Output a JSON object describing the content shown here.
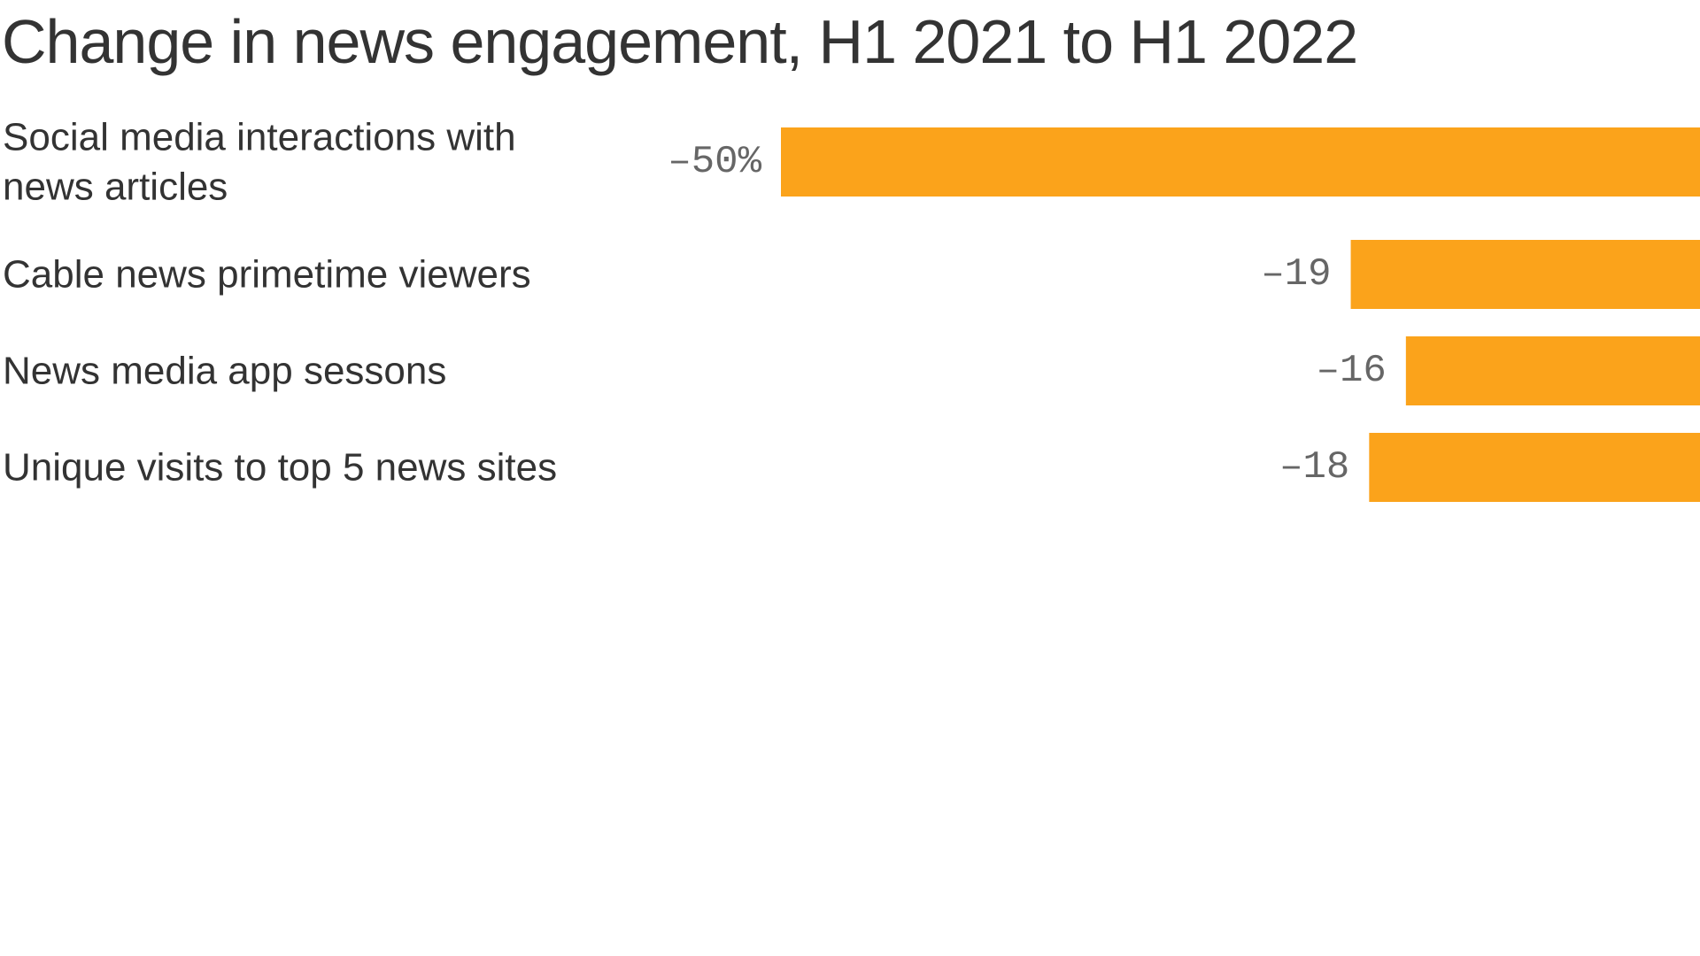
{
  "chart_data": {
    "type": "bar",
    "orientation": "horizontal",
    "title": "Change in news engagement, H1 2021 to H1 2022",
    "categories": [
      [
        "Social media interactions with",
        "news articles"
      ],
      [
        "Cable news primetime viewers"
      ],
      [
        "News media app sessons"
      ],
      [
        "Unique visits to top 5 news sites"
      ]
    ],
    "values": [
      -50,
      -19,
      -16,
      -18
    ],
    "value_labels": [
      "–50%",
      "–19",
      "–16",
      "–18"
    ],
    "xlim": [
      -50,
      0
    ],
    "grid": false,
    "legend": "none",
    "bar_color": "#FBA31B"
  }
}
